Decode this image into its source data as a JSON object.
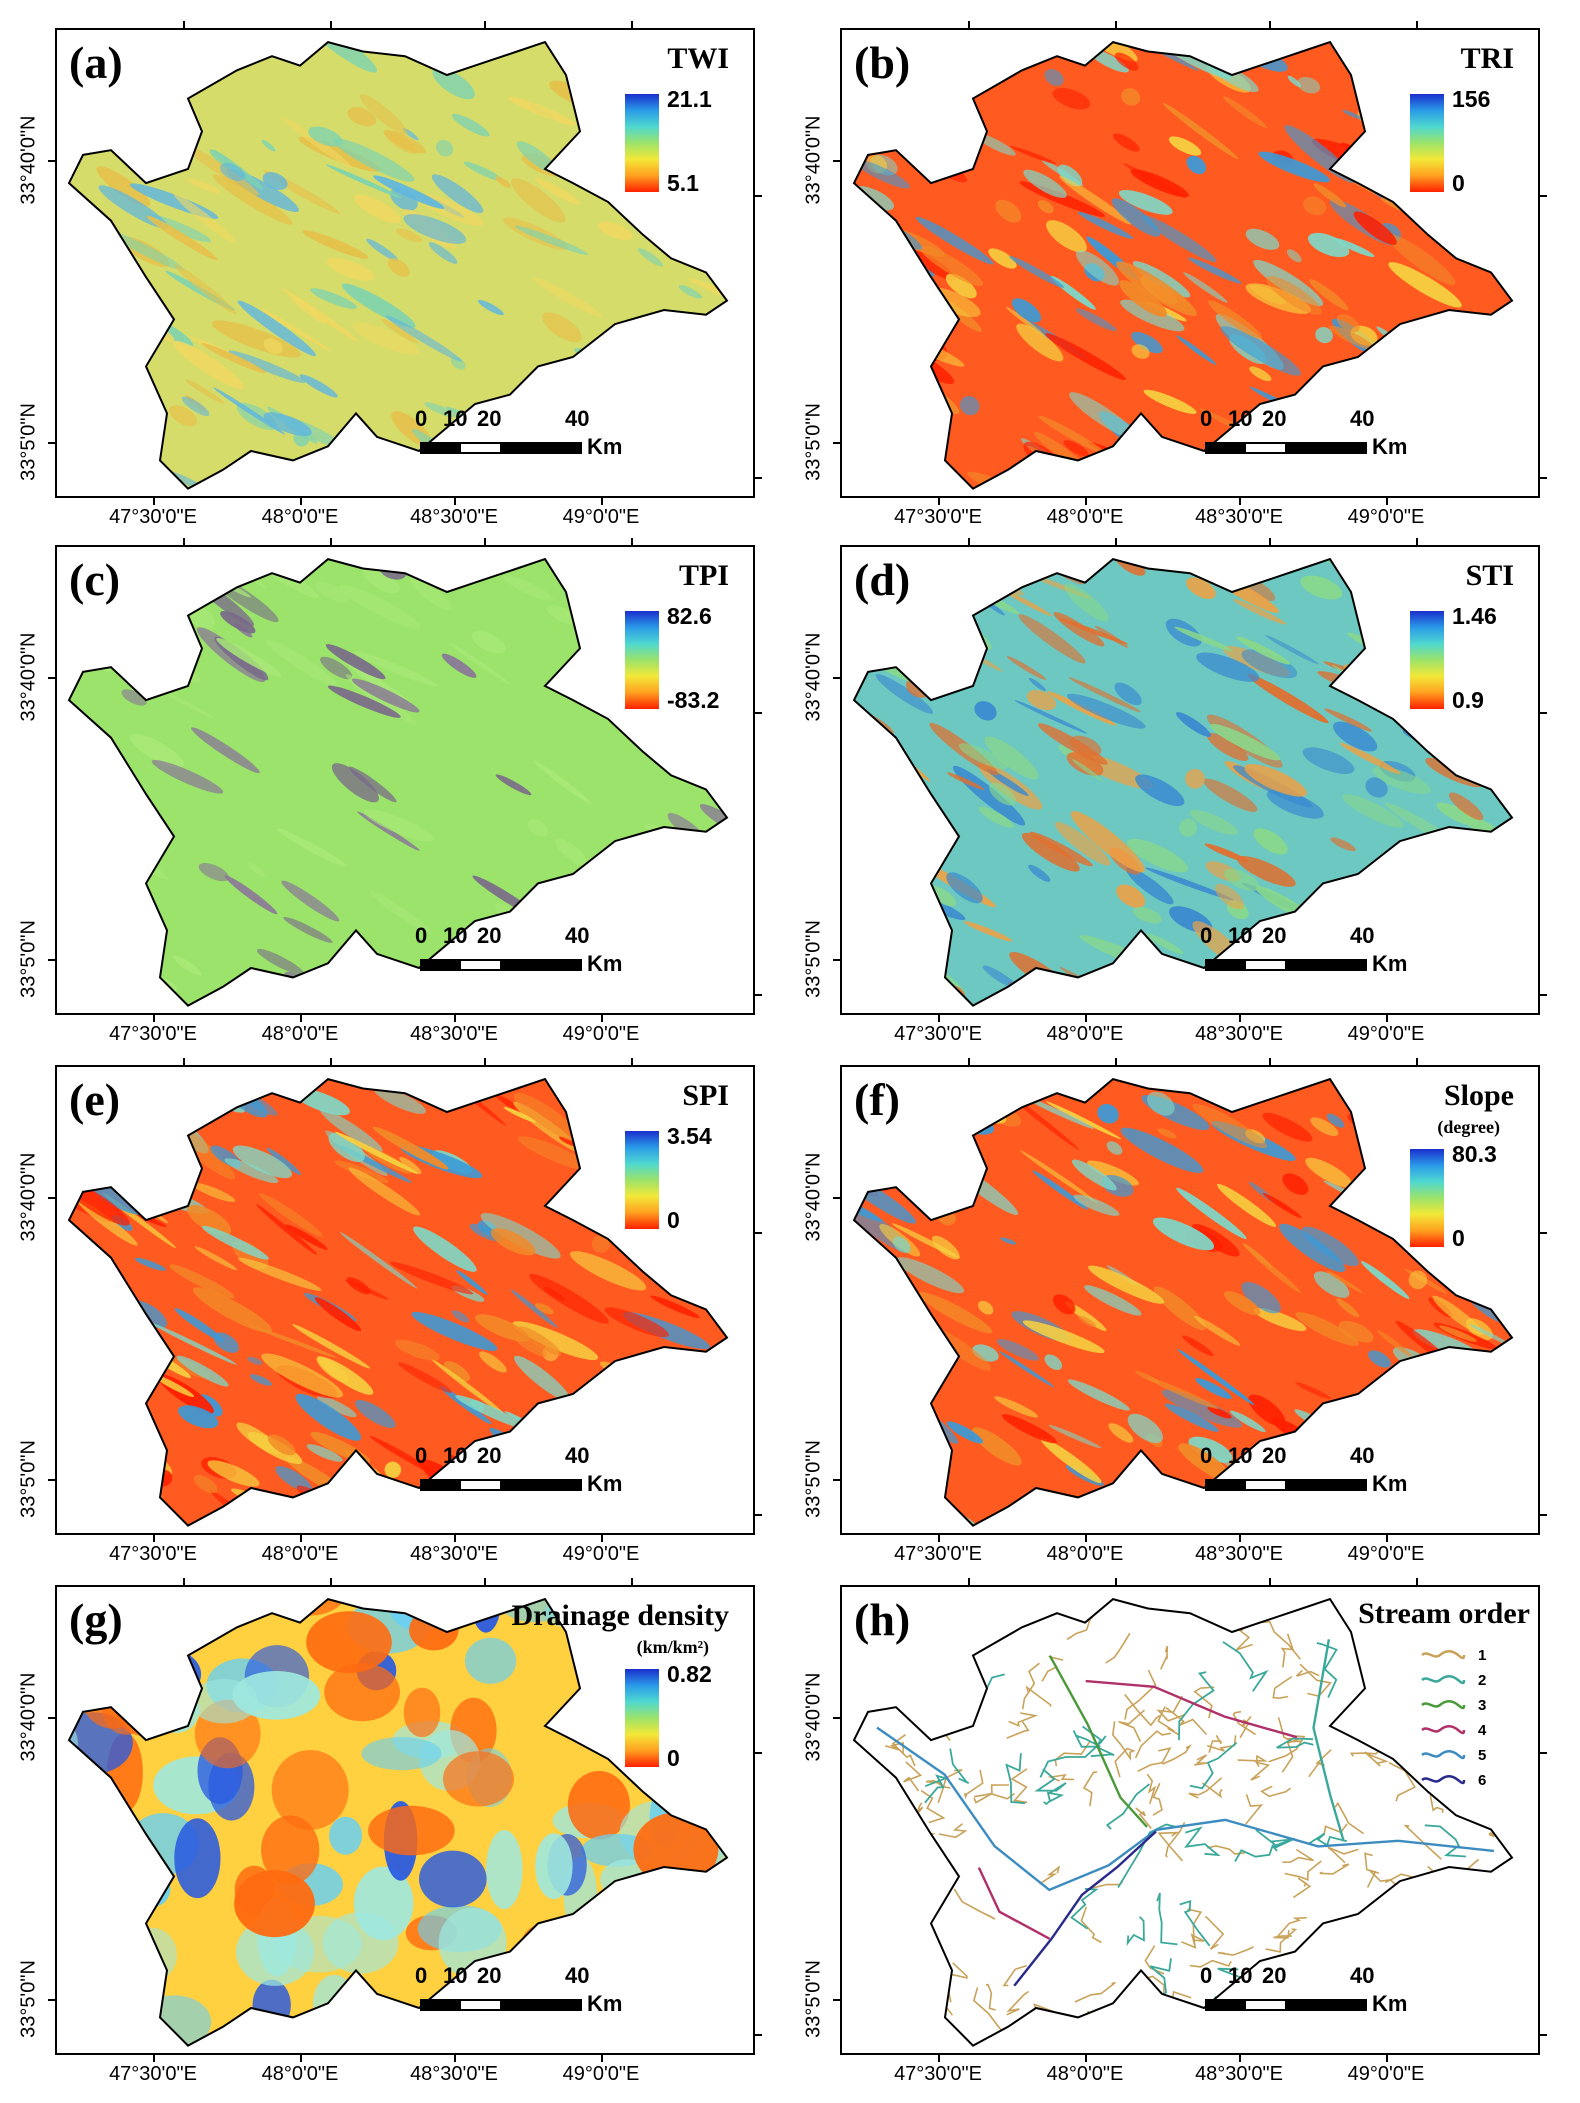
{
  "x_axis_labels": [
    "47°30'0\"E",
    "48°0'0\"E",
    "48°30'0\"E",
    "49°0'0\"E"
  ],
  "y_axis_labels": [
    "33°40'0\"N",
    "33°5'0\"N"
  ],
  "scale_bar": {
    "numbers": [
      "0",
      "10",
      "20",
      "40"
    ],
    "unit": "Km"
  },
  "panels": [
    {
      "id": "a",
      "label": "(a)",
      "title": "TWI",
      "max": "21.1",
      "min": "5.1",
      "style": "mixed"
    },
    {
      "id": "b",
      "label": "(b)",
      "title": "TRI",
      "max": "156",
      "min": "0",
      "style": "red"
    },
    {
      "id": "c",
      "label": "(c)",
      "title": "TPI",
      "max": "82.6",
      "min": "-83.2",
      "style": "green"
    },
    {
      "id": "d",
      "label": "(d)",
      "title": "STI",
      "max": "1.46",
      "min": "0.9",
      "style": "blue"
    },
    {
      "id": "e",
      "label": "(e)",
      "title": "SPI",
      "max": "3.54",
      "min": "0",
      "style": "red"
    },
    {
      "id": "f",
      "label": "(f)",
      "title": "Slope",
      "unit": "(degree)",
      "max": "80.3",
      "min": "0",
      "style": "red"
    },
    {
      "id": "g",
      "label": "(g)",
      "title": "Drainage density",
      "unit": "(km/km²)",
      "max": "0.82",
      "min": "0",
      "style": "blob"
    }
  ],
  "stream_panel": {
    "label": "(h)",
    "title": "Stream order",
    "orders": [
      {
        "order": "1",
        "color": "#c9a25a"
      },
      {
        "order": "2",
        "color": "#3aa89a"
      },
      {
        "order": "3",
        "color": "#4a9a3a"
      },
      {
        "order": "4",
        "color": "#b0306a"
      },
      {
        "order": "5",
        "color": "#3c8cc0"
      },
      {
        "order": "6",
        "color": "#2a2a8a"
      }
    ]
  },
  "colors": {
    "ramp_high": "#1a2ecc",
    "ramp_mid": "#9be36a",
    "ramp_low": "#ff2000"
  }
}
